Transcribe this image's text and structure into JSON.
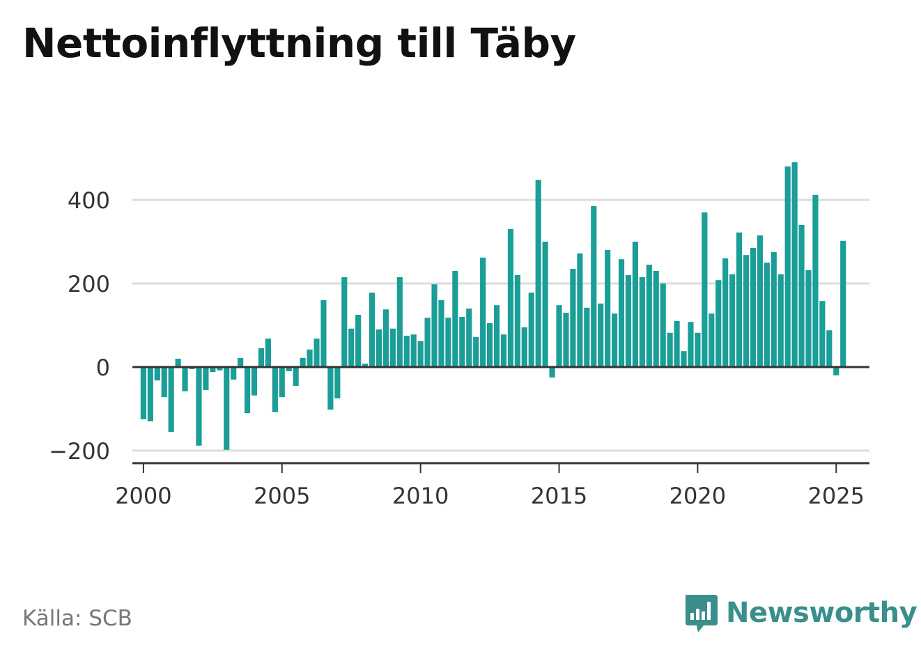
{
  "header": {
    "title": "Nettoinflyttning till Täby"
  },
  "footer": {
    "source": "Källa: SCB",
    "brand": "Newsworthy"
  },
  "icons": {
    "logo": "bar-chart-speech-bubble-icon"
  },
  "colors": {
    "bar": "#1a9e97",
    "grid": "#dddddd",
    "axis": "#333333",
    "text": "#333333",
    "source": "#777777",
    "brand": "#3a8f8c"
  },
  "chart_data": {
    "type": "bar",
    "title": "Nettoinflyttning till Täby",
    "xlabel": "",
    "ylabel": "",
    "ylim": [
      -230,
      500
    ],
    "xlim": [
      1999.6,
      2026.2
    ],
    "yticks": [
      400,
      200,
      0,
      -200
    ],
    "ytick_labels": [
      "400",
      "200",
      "0",
      "−200"
    ],
    "xticks": [
      2000,
      2005,
      2010,
      2015,
      2020,
      2025
    ],
    "xtick_labels": [
      "2000",
      "2005",
      "2010",
      "2015",
      "2020",
      "2025"
    ],
    "grid": true,
    "frequency": "quarterly",
    "start": "2000 Q1",
    "values": [
      -125,
      -130,
      -32,
      -72,
      -155,
      20,
      -58,
      -5,
      -188,
      -55,
      -12,
      -8,
      -198,
      -30,
      22,
      -110,
      -68,
      45,
      68,
      -108,
      -72,
      -10,
      -45,
      22,
      42,
      68,
      160,
      -102,
      -75,
      215,
      92,
      125,
      8,
      178,
      90,
      138,
      92,
      215,
      75,
      78,
      62,
      118,
      198,
      160,
      118,
      230,
      120,
      140,
      72,
      262,
      105,
      148,
      78,
      330,
      220,
      95,
      178,
      448,
      300,
      -25,
      148,
      130,
      235,
      272,
      142,
      385,
      152,
      280,
      128,
      258,
      220,
      300,
      215,
      245,
      230,
      200,
      82,
      110,
      38,
      108,
      82,
      370,
      128,
      208,
      260,
      222,
      322,
      268,
      285,
      315,
      250,
      275,
      222,
      480,
      490,
      340,
      232,
      412,
      158,
      88,
      -20,
      302
    ]
  }
}
